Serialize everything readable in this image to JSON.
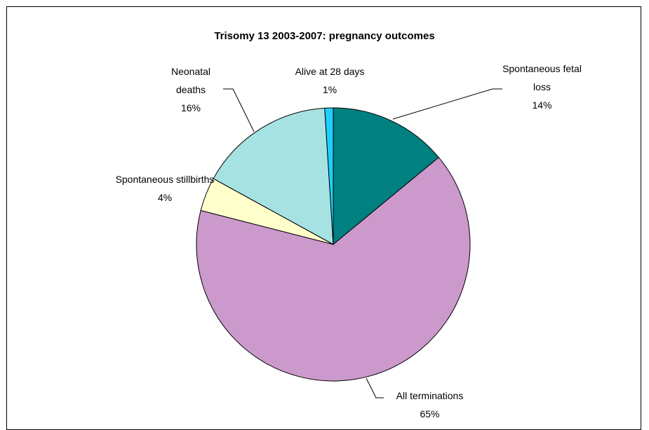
{
  "chart_data": {
    "type": "pie",
    "title": "Trisomy 13 2003-2007: pregnancy outcomes",
    "categories": [
      "Spontaneous fetal loss",
      "All terminations",
      "Spontaneous stillbirths",
      "Neonatal deaths",
      "Alive at 28 days"
    ],
    "values": [
      14,
      65,
      4,
      16,
      1
    ],
    "value_labels": [
      "14%",
      "65%",
      "4%",
      "16%",
      "1%"
    ],
    "colors": [
      "#008080",
      "#cc99cc",
      "#ffffcc",
      "#a6e2e2",
      "#1ecfff"
    ]
  }
}
